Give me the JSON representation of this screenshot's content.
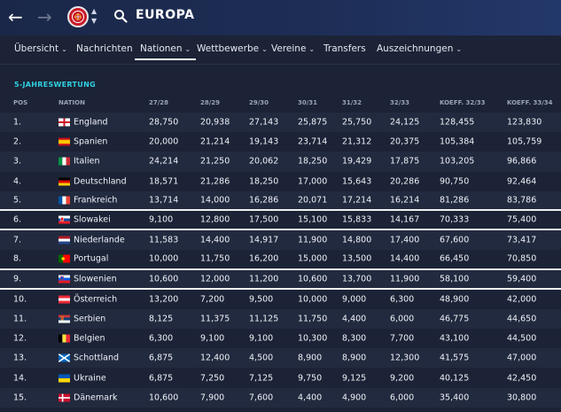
{
  "header": {
    "back_icon": "arrow-left-icon",
    "forward_icon": "arrow-right-icon",
    "logo_icon": "uefa-logo-icon",
    "search_icon": "search-icon",
    "title": "EUROPA"
  },
  "nav": {
    "items": [
      {
        "label": "Übersicht",
        "dropdown": true
      },
      {
        "label": "Nachrichten",
        "dropdown": false
      },
      {
        "label": "Nationen",
        "dropdown": true,
        "active": true
      },
      {
        "label": "Wettbewerbe",
        "dropdown": true
      },
      {
        "label": "Vereine",
        "dropdown": true
      },
      {
        "label": "Transfers",
        "dropdown": false
      },
      {
        "label": "Auszeichnungen",
        "dropdown": true
      }
    ]
  },
  "table": {
    "title": "5-JAHRESWERTUNG",
    "headers": [
      "POS",
      "NATION",
      "27/28",
      "28/29",
      "29/30",
      "30/31",
      "31/32",
      "32/33",
      "KOEFF. 32/33",
      "KOEFF. 33/34"
    ],
    "rows": [
      {
        "pos": "1.",
        "nation": "England",
        "flag": "england",
        "values": [
          "28,750",
          "20,938",
          "27,143",
          "25,875",
          "25,750",
          "24,125"
        ],
        "k1": "128,455",
        "k2": "123,830"
      },
      {
        "pos": "2.",
        "nation": "Spanien",
        "flag": "spain",
        "values": [
          "20,000",
          "21,214",
          "19,143",
          "23,714",
          "21,312",
          "20,375"
        ],
        "k1": "105,384",
        "k2": "105,759"
      },
      {
        "pos": "3.",
        "nation": "Italien",
        "flag": "italy",
        "values": [
          "24,214",
          "21,250",
          "20,062",
          "18,250",
          "19,429",
          "17,875"
        ],
        "k1": "103,205",
        "k2": "96,866"
      },
      {
        "pos": "4.",
        "nation": "Deutschland",
        "flag": "germany",
        "values": [
          "18,571",
          "21,286",
          "18,250",
          "17,000",
          "15,643",
          "20,286"
        ],
        "k1": "90,750",
        "k2": "92,464"
      },
      {
        "pos": "5.",
        "nation": "Frankreich",
        "flag": "france",
        "values": [
          "13,714",
          "14,000",
          "16,286",
          "20,071",
          "17,214",
          "16,214"
        ],
        "k1": "81,286",
        "k2": "83,786"
      },
      {
        "pos": "6.",
        "nation": "Slowakei",
        "flag": "slovakia",
        "values": [
          "9,100",
          "12,800",
          "17,500",
          "15,100",
          "15,833",
          "14,167"
        ],
        "k1": "70,333",
        "k2": "75,400"
      },
      {
        "pos": "7.",
        "nation": "Niederlande",
        "flag": "netherlands",
        "values": [
          "11,583",
          "14,400",
          "14,917",
          "11,900",
          "14,800",
          "17,400"
        ],
        "k1": "67,600",
        "k2": "73,417"
      },
      {
        "pos": "8.",
        "nation": "Portugal",
        "flag": "portugal",
        "values": [
          "10,000",
          "11,750",
          "16,200",
          "15,000",
          "13,500",
          "14,400"
        ],
        "k1": "66,450",
        "k2": "70,850"
      },
      {
        "pos": "9.",
        "nation": "Slowenien",
        "flag": "slovenia",
        "values": [
          "10,600",
          "12,000",
          "11,200",
          "10,600",
          "13,700",
          "11,900"
        ],
        "k1": "58,100",
        "k2": "59,400"
      },
      {
        "pos": "10.",
        "nation": "Österreich",
        "flag": "austria",
        "values": [
          "13,200",
          "7,200",
          "9,500",
          "10,000",
          "9,000",
          "6,300"
        ],
        "k1": "48,900",
        "k2": "42,000"
      },
      {
        "pos": "11.",
        "nation": "Serbien",
        "flag": "serbia",
        "values": [
          "8,125",
          "11,375",
          "11,125",
          "11,750",
          "4,400",
          "6,000"
        ],
        "k1": "46,775",
        "k2": "44,650"
      },
      {
        "pos": "12.",
        "nation": "Belgien",
        "flag": "belgium",
        "values": [
          "6,300",
          "9,100",
          "9,100",
          "10,300",
          "8,300",
          "7,700"
        ],
        "k1": "43,100",
        "k2": "44,500"
      },
      {
        "pos": "13.",
        "nation": "Schottland",
        "flag": "scotland",
        "values": [
          "6,875",
          "12,400",
          "4,500",
          "8,900",
          "8,900",
          "12,300"
        ],
        "k1": "41,575",
        "k2": "47,000"
      },
      {
        "pos": "14.",
        "nation": "Ukraine",
        "flag": "ukraine",
        "values": [
          "6,875",
          "7,250",
          "7,125",
          "9,750",
          "9,125",
          "9,200"
        ],
        "k1": "40,125",
        "k2": "42,450"
      },
      {
        "pos": "15.",
        "nation": "Dänemark",
        "flag": "denmark",
        "values": [
          "10,600",
          "7,900",
          "7,600",
          "4,400",
          "4,900",
          "6,000"
        ],
        "k1": "35,400",
        "k2": "30,800"
      }
    ]
  },
  "colors": {
    "accent": "#2fd0e0",
    "background": "#1c2336",
    "row_alt": "#222a3f",
    "separator": "#f0f0f0"
  }
}
